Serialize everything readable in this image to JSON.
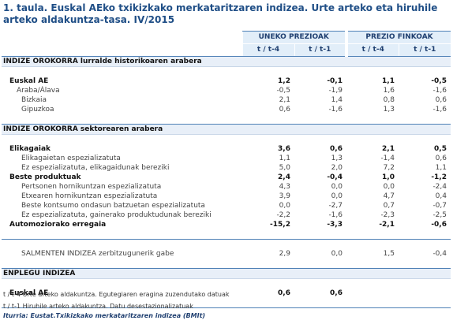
{
  "title": "1. taula. Euskal AEko txikizkako merkataritzaren indizea. Urte arteko eta hiruhile arteko aldakuntza-tasa. IV/2015",
  "table": {
    "groups": [
      "UNEKO PREZIOAK",
      "PREZIO FINKOAK"
    ],
    "subheaders": [
      "t / t-4",
      "t / t-1",
      "t / t-4",
      "t / t-1"
    ],
    "section1": {
      "title": "INDIZE OROKORRA lurralde historikoaren arabera",
      "rows": [
        {
          "label": "Euskal AE",
          "v": [
            "1,2",
            "-0,1",
            "1,1",
            "-0,5"
          ]
        },
        {
          "label": "Araba/Álava",
          "v": [
            "-0,5",
            "-1,9",
            "1,6",
            "-1,6"
          ]
        },
        {
          "label": "Bizkaia",
          "v": [
            "2,1",
            "1,4",
            "0,8",
            "0,6"
          ]
        },
        {
          "label": "Gipuzkoa",
          "v": [
            "0,6",
            "-1,6",
            "1,3",
            "-1,6"
          ]
        }
      ]
    },
    "section2": {
      "title": "INDIZE OROKORRA sektorearen arabera",
      "rows": [
        {
          "label": "Elikagaiak",
          "v": [
            "3,6",
            "0,6",
            "2,1",
            "0,5"
          ]
        },
        {
          "label": "Elikagaietan espezializatuta",
          "v": [
            "1,1",
            "1,3",
            "-1,4",
            "0,6"
          ]
        },
        {
          "label": "Ez espezializatuta, elikagaidunak bereziki",
          "v": [
            "5,0",
            "2,0",
            "7,2",
            "1,1"
          ]
        },
        {
          "label": "Beste produktuak",
          "v": [
            "2,4",
            "-0,4",
            "1,0",
            "-1,2"
          ]
        },
        {
          "label": "Pertsonen hornikuntzan espezializatuta",
          "v": [
            "4,3",
            "0,0",
            "0,0",
            "-2,4"
          ]
        },
        {
          "label": "Etxearen hornikuntzan espezializatuta",
          "v": [
            "3,9",
            "0,0",
            "4,7",
            "0,4"
          ]
        },
        {
          "label": "Beste kontsumo ondasun batzuetan espezializatuta",
          "v": [
            "0,0",
            "-2,7",
            "0,7",
            "-0,7"
          ]
        },
        {
          "label": "Ez espezializatuta, gainerako produktudunak bereziki",
          "v": [
            "-2,2",
            "-1,6",
            "-2,3",
            "-2,5"
          ]
        },
        {
          "label": "Automoziorako erregaia",
          "v": [
            "-15,2",
            "-3,3",
            "-2,1",
            "-0,6"
          ]
        }
      ]
    },
    "salmenten": {
      "label": "SALMENTEN INDIZEA zerbitzugunerik gabe",
      "v": [
        "2,9",
        "0,0",
        "1,5",
        "-0,4"
      ]
    },
    "section3": {
      "title": "ENPLEGU INDIZEA",
      "rows": [
        {
          "label": "Euskal AE",
          "v": [
            "0,6",
            "0,6",
            "",
            ""
          ]
        }
      ]
    }
  },
  "footnotes": {
    "n1": "t / t-4 Urte arteko aldakuntza. Egutegiaren eragina zuzendutako datuak",
    "n2": "t / t-1 Hiruhile arteko aldakuntza. Datu desestazionalizatuak",
    "source": "Iturria: Eustat.Txikizkako merkataritzaren indizea (BMIt)"
  },
  "colors": {
    "title": "#1f4e86",
    "header_bg": "#e2eef9",
    "rule": "#4e80b6"
  }
}
